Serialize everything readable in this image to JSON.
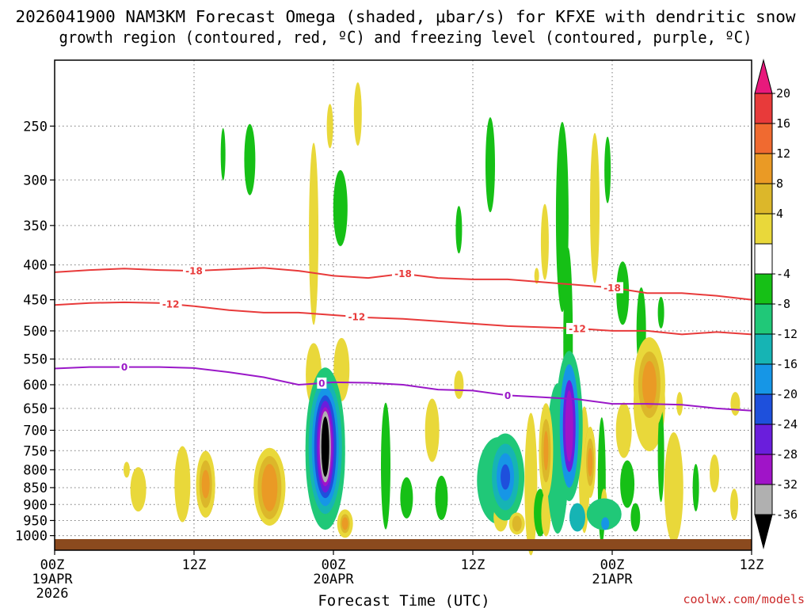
{
  "chart_data": {
    "type": "heatmap",
    "title_line1": "2026041900 NAM3KM Forecast Omega (shaded, μbar/s) for KFXE with dendritic snow",
    "title_line2": "growth region (contoured, red, ºC) and freezing level (contoured, purple, ºC)",
    "xlabel": "Forecast Time (UTC)",
    "x_hours": [
      0,
      12,
      24,
      36,
      48,
      60
    ],
    "x_tick_labels": [
      [
        "00Z",
        "19APR",
        "2026"
      ],
      [
        "12Z"
      ],
      [
        "00Z",
        "20APR"
      ],
      [
        "12Z"
      ],
      [
        "00Z",
        "21APR"
      ],
      [
        "12Z"
      ]
    ],
    "xlim": [
      0,
      60
    ],
    "y_levels_hpa": [
      250,
      300,
      350,
      400,
      450,
      500,
      550,
      600,
      650,
      700,
      750,
      800,
      850,
      900,
      950,
      1000
    ],
    "ylim": [
      1000,
      200
    ],
    "y_scale": "log-pressure (inverted)",
    "grid": "dotted",
    "colorbar": {
      "labels": [
        "20",
        "16",
        "12",
        "8",
        "4",
        "-4",
        "-8",
        "-12",
        "-16",
        "-20",
        "-24",
        "-28",
        "-32",
        "-36"
      ],
      "colors": [
        "#e8197c",
        "#e83a3a",
        "#f06a30",
        "#ea9a25",
        "#dcb72a",
        "#e9d83a",
        "#ffffff",
        "#16c016",
        "#20c878",
        "#16b4b4",
        "#1696e6",
        "#1e50dc",
        "#6a1edc",
        "#a014c8",
        "#b0b0b0",
        "#000000"
      ]
    },
    "contours": [
      {
        "label": "-18",
        "color": "#e83a3a",
        "hpa": [
          410,
          407,
          405,
          407,
          408,
          406,
          404,
          408,
          415,
          418,
          412,
          418,
          420,
          420,
          424,
          428,
          432,
          440,
          440,
          444,
          450
        ],
        "label_hours": [
          12,
          30,
          48
        ]
      },
      {
        "label": "-12",
        "color": "#e83a3a",
        "hpa": [
          458,
          455,
          454,
          455,
          460,
          466,
          470,
          470,
          474,
          478,
          480,
          484,
          488,
          492,
          494,
          496,
          500,
          500,
          506,
          502,
          506
        ],
        "label_hours": [
          10,
          26,
          45
        ]
      },
      {
        "label": "0",
        "color": "#9a18c8",
        "hpa": [
          568,
          565,
          565,
          565,
          567,
          575,
          585,
          600,
          595,
          596,
          600,
          610,
          612,
          622,
          626,
          630,
          640,
          640,
          642,
          650,
          655
        ],
        "label_hours": [
          6,
          23,
          39
        ]
      }
    ],
    "omega_features": [
      {
        "hour": 23.3,
        "p_center": 740,
        "p_top": 620,
        "p_bottom": 930,
        "value": -36,
        "desc": "strong upward motion core"
      },
      {
        "hour": 44.3,
        "p_center": 690,
        "p_top": 590,
        "p_bottom": 880,
        "value": -28
      },
      {
        "hour": 38.5,
        "p_center": 830,
        "p_top": 740,
        "p_bottom": 930,
        "value": -16
      },
      {
        "hour": 18.5,
        "p_center": 850,
        "p_top": 760,
        "p_bottom": 950,
        "value": 12
      },
      {
        "hour": 51.2,
        "p_center": 600,
        "p_top": 540,
        "p_bottom": 750,
        "value": 12
      },
      {
        "hour": 13.0,
        "p_center": 850,
        "p_top": 780,
        "p_bottom": 930,
        "value": 12
      },
      {
        "hour": 7.2,
        "p_center": 850,
        "p_top": 790,
        "p_bottom": 920,
        "value": 8
      }
    ]
  },
  "watermark": "coolwx.com/models"
}
